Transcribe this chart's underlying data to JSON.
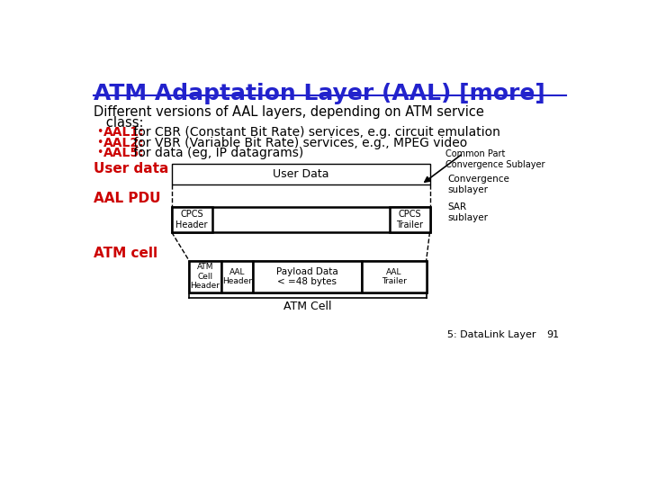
{
  "title": "ATM Adaptation Layer (AAL) [more]",
  "subtitle_line1": "Different versions of AAL layers, depending on ATM service",
  "subtitle_line2": "   class:",
  "bullets": [
    {
      "colored": "AAL1:",
      "rest": " for CBR (Constant Bit Rate) services, e.g. circuit emulation"
    },
    {
      "colored": "AAL2:",
      "rest": " for VBR (Variable Bit Rate) services, e.g., MPEG video"
    },
    {
      "colored": "AAL5:",
      "rest": " for data (eg, IP datagrams)"
    }
  ],
  "title_color": "#2222cc",
  "bullet_color": "#cc0000",
  "text_color": "#000000",
  "bg_color": "#ffffff",
  "label_color": "#cc0000",
  "annotation_color": "#000000",
  "footer": "5: DataLink Layer",
  "page": "91"
}
